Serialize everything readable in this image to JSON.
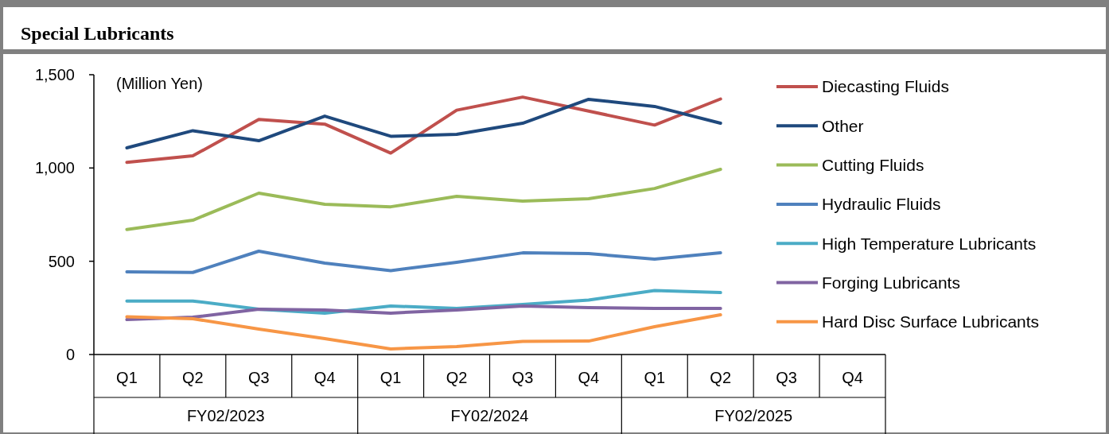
{
  "chart_data": {
    "type": "line",
    "title": "Special Lubricants",
    "ylabel": "(Million Yen)",
    "categories": [
      "Q1",
      "Q2",
      "Q3",
      "Q4",
      "Q1",
      "Q2",
      "Q3",
      "Q4",
      "Q1",
      "Q2",
      "Q3",
      "Q4"
    ],
    "annotations": [
      "FY02/2023",
      "FY02/2024",
      "FY02/2025"
    ],
    "ylim": [
      0,
      1500
    ],
    "yticks": [
      0,
      {
        "value": 500,
        "label": "500"
      },
      {
        "value": 1000,
        "label": "1,000"
      },
      {
        "value": 1500,
        "label": "1,500"
      }
    ],
    "grid": false,
    "legend": "right",
    "marker": "none",
    "line_style": "solid",
    "series": [
      {
        "name": "Diecasting Fluids",
        "color": "#c0504d",
        "values": [
          1030,
          1065,
          1260,
          1235,
          1080,
          1310,
          1380,
          1305,
          1230,
          1370,
          null,
          null
        ]
      },
      {
        "name": "Other",
        "color": "#1f497d",
        "values": [
          1108,
          1200,
          1146,
          1278,
          1170,
          1180,
          1240,
          1368,
          1330,
          1240,
          null,
          null
        ]
      },
      {
        "name": "Cutting Fluids",
        "color": "#9bbb59",
        "values": [
          670,
          720,
          865,
          805,
          792,
          848,
          822,
          835,
          890,
          993,
          null,
          null
        ]
      },
      {
        "name": "Hydraulic Fluids",
        "color": "#4f81bd",
        "values": [
          443,
          440,
          554,
          490,
          450,
          494,
          545,
          541,
          511,
          545,
          null,
          null
        ]
      },
      {
        "name": "High Temperature Lubricants",
        "color": "#4bacc6",
        "values": [
          287,
          287,
          243,
          222,
          260,
          247,
          268,
          292,
          343,
          332,
          null,
          null
        ]
      },
      {
        "name": "Forging Lubricants",
        "color": "#8064a2",
        "values": [
          187,
          200,
          243,
          239,
          222,
          239,
          260,
          251,
          247,
          247,
          null,
          null
        ]
      },
      {
        "name": "Hard Disc Surface Lubricants",
        "color": "#f79646",
        "values": [
          202,
          192,
          136,
          85,
          30,
          43,
          70,
          72,
          149,
          213,
          null,
          null
        ]
      }
    ]
  }
}
